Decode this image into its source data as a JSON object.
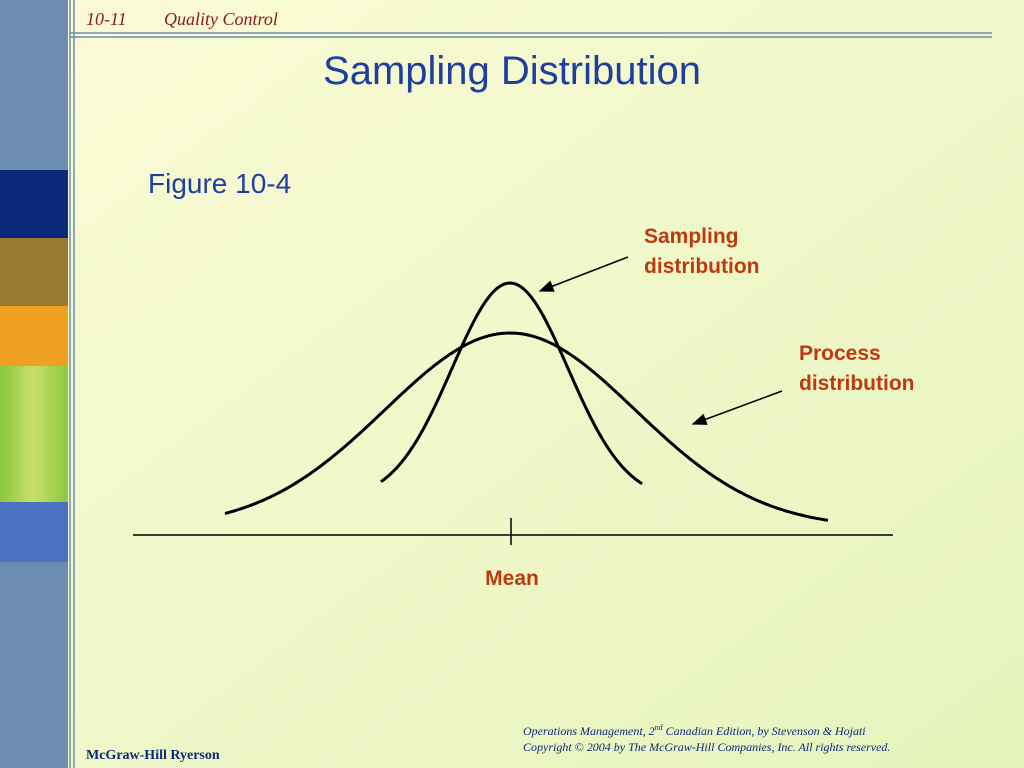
{
  "header": {
    "slide_number": "10-11",
    "section": "Quality Control"
  },
  "title": "Sampling Distribution",
  "subtitle": "Figure 10-4",
  "labels": {
    "sampling": [
      "Sampling",
      "distribution"
    ],
    "process": [
      "Process",
      "distribution"
    ],
    "mean": "Mean"
  },
  "footer": {
    "publisher": "McGraw-Hill Ryerson",
    "citation": [
      "Operations Management, 2",
      "nd",
      " Canadian Edition, by Stevenson & Hojati"
    ],
    "copyright": "Copyright © 2004 by The McGraw-Hill Companies, Inc.  All rights reserved."
  }
}
